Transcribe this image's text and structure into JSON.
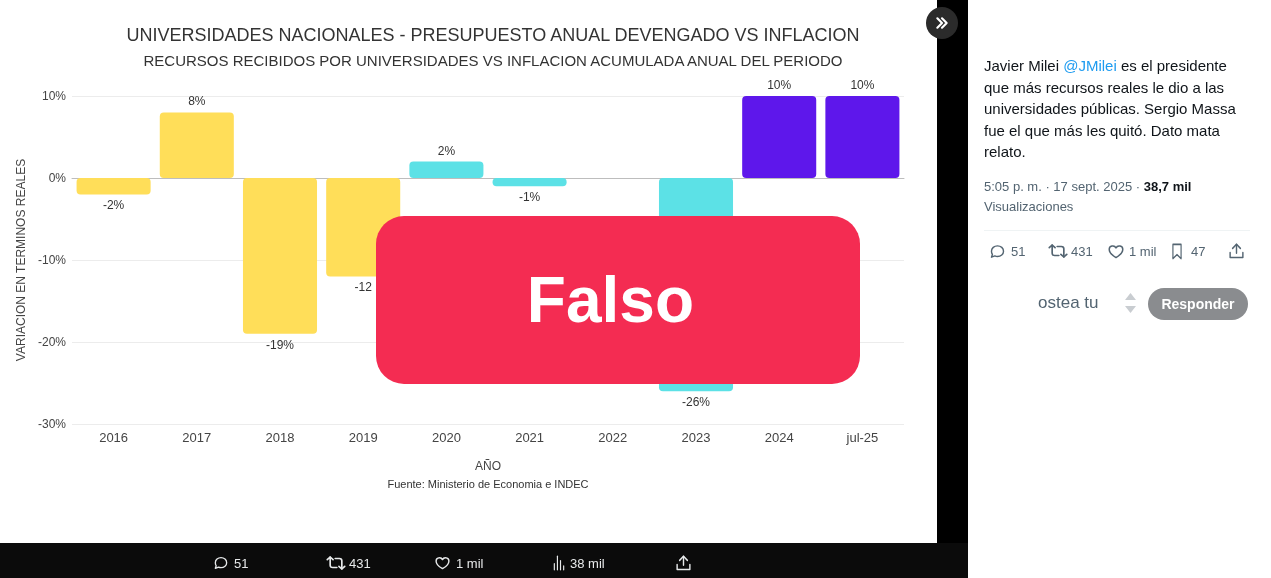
{
  "chart_data": {
    "type": "bar",
    "title": "UNIVERSIDADES NACIONALES - PRESUPUESTO ANUAL DEVENGADO VS INFLACION",
    "subtitle": "RECURSOS RECIBIDOS POR UNIVERSIDADES VS INFLACION ACUMULADA ANUAL DEL PERIODO",
    "xlabel": "AÑO",
    "ylabel": "VARIACION EN TERMINOS REALES",
    "categories": [
      "2016",
      "2017",
      "2018",
      "2019",
      "2020",
      "2021",
      "2022",
      "2023",
      "2024",
      "jul-25"
    ],
    "values": [
      -2,
      8,
      -19,
      -12,
      2,
      -1,
      null,
      -26,
      10,
      10
    ],
    "colors": [
      "#ffde59",
      "#ffde59",
      "#ffde59",
      "#ffde59",
      "#5ce1e6",
      "#5ce1e6",
      "#5ce1e6",
      "#5ce1e6",
      "#5e17eb",
      "#5e17eb"
    ],
    "value_labels": [
      "-2%",
      "8%",
      "-19%",
      "-12",
      "2%",
      "-1%",
      null,
      "-26%",
      "10%",
      "10%"
    ],
    "ylim": [
      -30,
      10
    ],
    "yticks": [
      {
        "value": -30,
        "label": "-30%"
      },
      {
        "value": -20,
        "label": "-20%"
      },
      {
        "value": -10,
        "label": "-10%"
      },
      {
        "value": 0,
        "label": "0%"
      },
      {
        "value": 10,
        "label": "10%"
      }
    ],
    "grid": "y",
    "annotations": [
      "Fuente: Ministerio de Economia e INDEC",
      "Falso",
      "Javier Milei",
      "@JMilei",
      "es el presidente",
      "que más recursos reales le dio a las universidades públicas. Sergio Massa fue el que más les quitó. Dato mata relato.",
      "5:05 p. m. · 17 sept. 2025 ·",
      "38,7 mil",
      "Visualizaciones",
      "51",
      "431",
      "1 mil",
      "47",
      "ostea tu",
      "Responder",
      "51",
      "431",
      "1 mil",
      "38 mil"
    ]
  }
}
